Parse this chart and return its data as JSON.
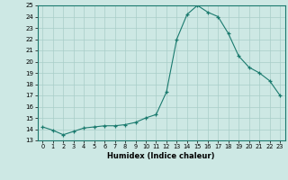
{
  "x": [
    0,
    1,
    2,
    3,
    4,
    5,
    6,
    7,
    8,
    9,
    10,
    11,
    12,
    13,
    14,
    15,
    16,
    17,
    18,
    19,
    20,
    21,
    22,
    23
  ],
  "y": [
    14.2,
    13.9,
    13.5,
    13.8,
    14.1,
    14.2,
    14.3,
    14.3,
    14.4,
    14.6,
    15.0,
    15.3,
    17.3,
    22.0,
    24.2,
    25.0,
    24.4,
    24.0,
    22.5,
    20.5,
    19.5,
    19.0,
    18.3,
    17.0
  ],
  "title": "",
  "xlabel": "Humidex (Indice chaleur)",
  "ylabel": "",
  "ylim": [
    13,
    25
  ],
  "xlim": [
    -0.5,
    23.5
  ],
  "yticks": [
    13,
    14,
    15,
    16,
    17,
    18,
    19,
    20,
    21,
    22,
    23,
    24,
    25
  ],
  "xticks": [
    0,
    1,
    2,
    3,
    4,
    5,
    6,
    7,
    8,
    9,
    10,
    11,
    12,
    13,
    14,
    15,
    16,
    17,
    18,
    19,
    20,
    21,
    22,
    23
  ],
  "line_color": "#1a7a6e",
  "marker_color": "#1a7a6e",
  "bg_color": "#cde8e4",
  "grid_color": "#a8cdc8",
  "axis_label_color": "#000000",
  "tick_label_color": "#000000"
}
